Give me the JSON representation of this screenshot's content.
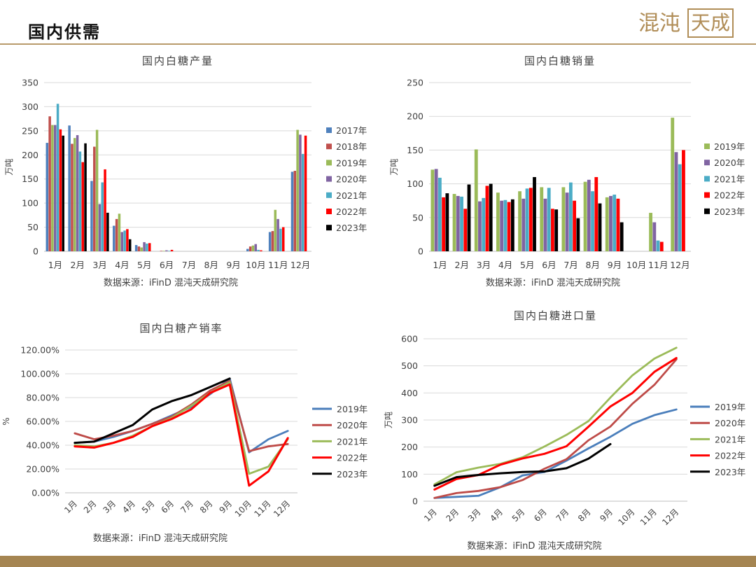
{
  "header": {
    "title": "国内供需",
    "logo_text_script": "混沌",
    "logo_text_box": "天成"
  },
  "colors": {
    "2017年": "#4f81bd",
    "2018年": "#c0504d",
    "2019年": "#9bbb59",
    "2020年": "#8064a2",
    "2021年": "#4bacc6",
    "2022年": "#ff0000",
    "2023年": "#000000",
    "line_2019年": "#4a7ebb",
    "line_2020年": "#be4b48",
    "line_2021年": "#9bbb59",
    "line_2022年": "#ff0000",
    "line_2023年": "#000000"
  },
  "chart_data": [
    {
      "type": "bar",
      "title": "国内白糖产量",
      "ylabel": "万吨",
      "source": "数据来源：iFinD 混沌天成研究院",
      "ylim": [
        0,
        350
      ],
      "yticks": [
        "0",
        "50",
        "100",
        "150",
        "200",
        "250",
        "300",
        "350"
      ],
      "categories": [
        "1月",
        "2月",
        "3月",
        "4月",
        "5月",
        "6月",
        "7月",
        "8月",
        "9月",
        "10月",
        "11月",
        "12月"
      ],
      "legend_position": "right",
      "series": [
        {
          "name": "2017年",
          "values": [
            225,
            261,
            146,
            53,
            13,
            0,
            0,
            0,
            0,
            5,
            40,
            165
          ]
        },
        {
          "name": "2018年",
          "values": [
            280,
            223,
            217,
            67,
            10,
            1,
            0,
            0,
            0,
            10,
            42,
            167
          ]
        },
        {
          "name": "2019年",
          "values": [
            262,
            235,
            252,
            78,
            8,
            1,
            0,
            0,
            0,
            12,
            86,
            252
          ]
        },
        {
          "name": "2020年",
          "values": [
            262,
            241,
            98,
            40,
            19,
            2,
            0,
            0,
            0,
            15,
            67,
            242
          ]
        },
        {
          "name": "2021年",
          "values": [
            306,
            207,
            143,
            43,
            16,
            1,
            0,
            0,
            0,
            3,
            47,
            202
          ]
        },
        {
          "name": "2022年",
          "values": [
            253,
            185,
            170,
            46,
            17,
            3,
            0,
            0,
            0,
            2,
            50,
            240
          ]
        },
        {
          "name": "2023年",
          "values": [
            240,
            224,
            80,
            25,
            0,
            0,
            0,
            0,
            0,
            0,
            0,
            0
          ]
        }
      ]
    },
    {
      "type": "bar",
      "title": "国内白糖销量",
      "ylabel": "万吨",
      "source": "数据来源：iFinD 混沌天成研究院",
      "ylim": [
        0,
        250
      ],
      "yticks": [
        "0",
        "50",
        "100",
        "150",
        "200",
        "250"
      ],
      "categories": [
        "1月",
        "2月",
        "3月",
        "4月",
        "5月",
        "6月",
        "7月",
        "8月",
        "9月",
        "10月",
        "11月",
        "12月"
      ],
      "legend_position": "right",
      "series": [
        {
          "name": "2019年",
          "values": [
            121,
            85,
            151,
            87,
            89,
            95,
            95,
            103,
            80,
            0,
            57,
            198
          ]
        },
        {
          "name": "2020年",
          "values": [
            122,
            82,
            74,
            75,
            78,
            78,
            87,
            106,
            82,
            0,
            43,
            147
          ]
        },
        {
          "name": "2021年",
          "values": [
            109,
            81,
            79,
            76,
            93,
            94,
            102,
            89,
            84,
            0,
            16,
            129
          ]
        },
        {
          "name": "2022年",
          "values": [
            80,
            63,
            97,
            73,
            94,
            63,
            75,
            110,
            78,
            0,
            14,
            150
          ]
        },
        {
          "name": "2023年",
          "values": [
            86,
            99,
            100,
            77,
            110,
            62,
            49,
            71,
            43,
            0,
            0,
            0
          ]
        }
      ]
    },
    {
      "type": "line",
      "title": "国内白糖产销率",
      "ylabel": "%",
      "source": "数据来源：iFinD 混沌天成研究院",
      "ylim": [
        0,
        1.2
      ],
      "yticks": [
        "0.00%",
        "20.00%",
        "40.00%",
        "60.00%",
        "80.00%",
        "100.00%",
        "120.00%"
      ],
      "x": [
        "1月",
        "2月",
        "3月",
        "4月",
        "5月",
        "6月",
        "7月",
        "8月",
        "9月",
        "10月",
        "11月",
        "12月"
      ],
      "legend_position": "right",
      "series": [
        {
          "name": "2019年",
          "values": [
            0.42,
            0.43,
            0.47,
            0.52,
            0.58,
            0.65,
            0.72,
            0.83,
            0.96,
            0.34,
            0.45,
            0.52
          ]
        },
        {
          "name": "2020年",
          "values": [
            0.5,
            0.45,
            0.48,
            0.52,
            0.58,
            0.64,
            0.74,
            0.86,
            0.94,
            0.35,
            0.39,
            0.41
          ]
        },
        {
          "name": "2021年",
          "values": [
            0.4,
            0.39,
            0.42,
            0.48,
            0.56,
            0.63,
            0.73,
            0.84,
            0.93,
            0.16,
            0.22,
            0.45
          ]
        },
        {
          "name": "2022年",
          "values": [
            0.39,
            0.38,
            0.42,
            0.47,
            0.56,
            0.62,
            0.7,
            0.84,
            0.91,
            0.06,
            0.18,
            0.46
          ]
        },
        {
          "name": "2023年",
          "values": [
            0.42,
            0.43,
            0.5,
            0.57,
            0.7,
            0.77,
            0.82,
            0.89,
            0.96,
            null,
            null,
            null
          ]
        }
      ]
    },
    {
      "type": "line",
      "title": "国内白糖进口量",
      "ylabel": "万吨",
      "source": "数据来源：iFinD 混沌天成研究院",
      "ylim": [
        0,
        600
      ],
      "yticks": [
        "0",
        "100",
        "200",
        "300",
        "400",
        "500",
        "600"
      ],
      "x": [
        "1月",
        "2月",
        "3月",
        "4月",
        "5月",
        "6月",
        "7月",
        "8月",
        "9月",
        "10月",
        "11月",
        "12月"
      ],
      "legend_position": "right",
      "series": [
        {
          "name": "2019年",
          "values": [
            12,
            16,
            20,
            52,
            95,
            108,
            150,
            195,
            238,
            286,
            318,
            339
          ]
        },
        {
          "name": "2020年",
          "values": [
            12,
            30,
            38,
            52,
            78,
            120,
            155,
            225,
            276,
            360,
            430,
            524
          ]
        },
        {
          "name": "2021年",
          "values": [
            62,
            107,
            124,
            138,
            162,
            202,
            245,
            296,
            383,
            465,
            527,
            567
          ]
        },
        {
          "name": "2022年",
          "values": [
            43,
            82,
            97,
            135,
            158,
            175,
            203,
            275,
            350,
            400,
            478,
            529
          ]
        },
        {
          "name": "2023年",
          "values": [
            57,
            89,
            97,
            103,
            108,
            110,
            122,
            157,
            211,
            null,
            null,
            null
          ]
        }
      ]
    }
  ]
}
